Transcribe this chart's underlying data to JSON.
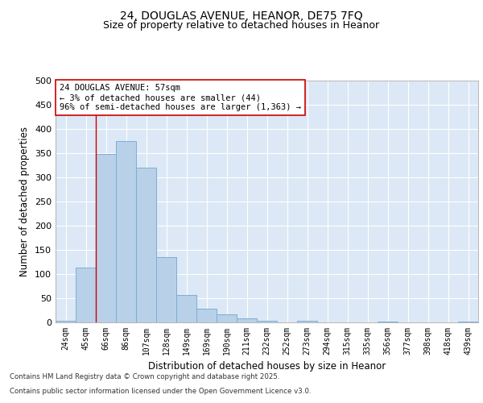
{
  "title_line1": "24, DOUGLAS AVENUE, HEANOR, DE75 7FQ",
  "title_line2": "Size of property relative to detached houses in Heanor",
  "xlabel": "Distribution of detached houses by size in Heanor",
  "ylabel": "Number of detached properties",
  "bar_labels": [
    "24sqm",
    "45sqm",
    "66sqm",
    "86sqm",
    "107sqm",
    "128sqm",
    "149sqm",
    "169sqm",
    "190sqm",
    "211sqm",
    "232sqm",
    "252sqm",
    "273sqm",
    "294sqm",
    "315sqm",
    "335sqm",
    "356sqm",
    "377sqm",
    "398sqm",
    "418sqm",
    "439sqm"
  ],
  "bar_values": [
    3,
    113,
    348,
    375,
    320,
    135,
    57,
    28,
    16,
    9,
    3,
    0,
    4,
    0,
    0,
    0,
    1,
    0,
    0,
    0,
    1
  ],
  "bar_color": "#b8d0e8",
  "bar_edge_color": "#7bafd4",
  "vline_x": 1.5,
  "vline_color": "#cc0000",
  "annotation_text": "24 DOUGLAS AVENUE: 57sqm\n← 3% of detached houses are smaller (44)\n96% of semi-detached houses are larger (1,363) →",
  "annotation_box_color": "#ffffff",
  "annotation_box_edge": "#cc0000",
  "ylim": [
    0,
    500
  ],
  "yticks": [
    0,
    50,
    100,
    150,
    200,
    250,
    300,
    350,
    400,
    450,
    500
  ],
  "footer_line1": "Contains HM Land Registry data © Crown copyright and database right 2025.",
  "footer_line2": "Contains public sector information licensed under the Open Government Licence v3.0.",
  "plot_bg_color": "#dce8f5",
  "fig_bg_color": "#ffffff"
}
